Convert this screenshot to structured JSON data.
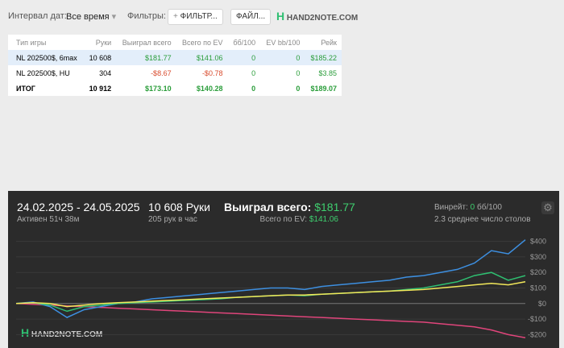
{
  "toolbar": {
    "interval_label": "Интервал дат:",
    "interval_value": "Все время",
    "filters_label": "Фильтры:",
    "filter_button": "ФИЛЬТР...",
    "file_button": "ФАЙЛ...",
    "logo": "HAND2NOTE.COM"
  },
  "table": {
    "columns": [
      "Тип игры",
      "Руки",
      "Выиграл всего",
      "Всего по EV",
      "бб/100",
      "EV bb/100",
      "Рейк"
    ],
    "rows": [
      [
        "NL 202500$, 6max",
        "10 608",
        "$181.77",
        "$141.06",
        "0",
        "0",
        "$185.22"
      ],
      [
        "NL 202500$, HU",
        "304",
        "-$8.67",
        "-$0.78",
        "0",
        "0",
        "$3.85"
      ],
      [
        "ИТОГ",
        "10 912",
        "$173.10",
        "$140.28",
        "0",
        "0",
        "$189.07"
      ]
    ]
  },
  "panel": {
    "dates": "24.02.2025 - 24.05.2025",
    "active": "Активен 51ч 38м",
    "hands": "10 608 Руки",
    "hands_per_hour": "205 рук в час",
    "won_label": "Выиграл всего:",
    "won_value": "$181.77",
    "ev_label": "Всего по EV:",
    "ev_value": "$141.06",
    "winrate_label": "Винрейт:",
    "winrate_value": "0",
    "winrate_unit": "бб/100",
    "tables": "2.3 среднее число столов",
    "logo": "HAND2NOTE.COM"
  },
  "chart_data": {
    "type": "line",
    "ylim": [
      -250,
      450
    ],
    "yticks": [
      {
        "value": 400,
        "label": "$400"
      },
      {
        "value": 300,
        "label": "$300"
      },
      {
        "value": 200,
        "label": "$200"
      },
      {
        "value": 100,
        "label": "$100"
      },
      {
        "value": 0,
        "label": "$0"
      },
      {
        "value": -100,
        "label": "-$100"
      },
      {
        "value": -200,
        "label": "-$200"
      }
    ],
    "grid": true,
    "series": [
      {
        "color": "#e0457b",
        "values": [
          0,
          -5,
          -10,
          -15,
          -20,
          -25,
          -30,
          -35,
          -40,
          -45,
          -50,
          -55,
          -60,
          -65,
          -70,
          -75,
          -80,
          -85,
          -90,
          -95,
          -100,
          -105,
          -110,
          -115,
          -120,
          -130,
          -140,
          -150,
          -170,
          -200,
          -220
        ]
      },
      {
        "color": "#3d8fe0",
        "values": [
          0,
          10,
          -20,
          -90,
          -40,
          -20,
          0,
          10,
          30,
          40,
          50,
          60,
          70,
          80,
          90,
          100,
          100,
          90,
          110,
          120,
          130,
          140,
          150,
          170,
          180,
          200,
          220,
          260,
          340,
          320,
          410
        ]
      },
      {
        "color": "#2fbf71",
        "values": [
          0,
          5,
          -10,
          -50,
          -20,
          -10,
          0,
          5,
          10,
          15,
          20,
          25,
          30,
          40,
          45,
          50,
          55,
          50,
          60,
          65,
          70,
          75,
          80,
          90,
          100,
          120,
          140,
          180,
          200,
          150,
          180
        ]
      },
      {
        "color": "#f2e85a",
        "values": [
          0,
          5,
          0,
          -20,
          -10,
          0,
          5,
          10,
          15,
          20,
          25,
          30,
          35,
          40,
          45,
          50,
          55,
          55,
          60,
          65,
          70,
          75,
          80,
          85,
          90,
          100,
          110,
          120,
          130,
          120,
          140
        ]
      }
    ]
  }
}
